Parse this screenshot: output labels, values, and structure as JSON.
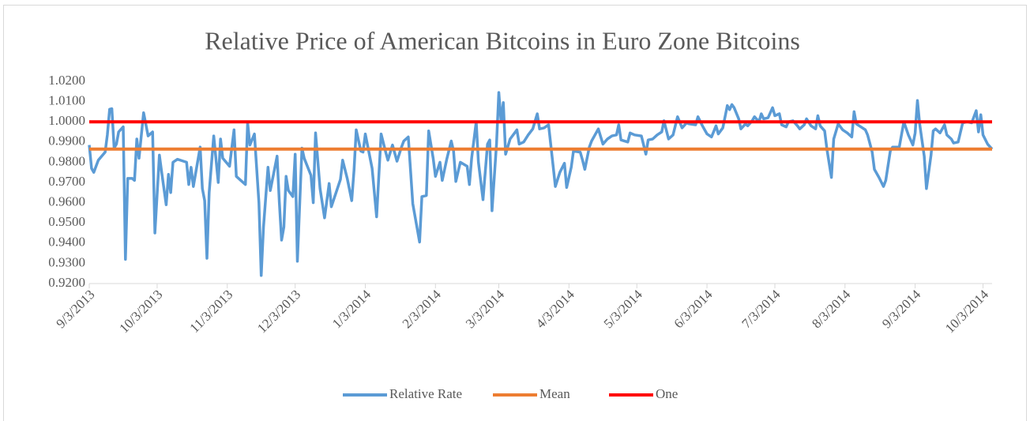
{
  "chart_data": {
    "type": "line",
    "title": "Relative Price of American Bitcoins in Euro Zone Bitcoins",
    "x": [
      "9/3/2013",
      "9/4/2013",
      "9/5/2013",
      "9/7/2013",
      "9/10/2013",
      "9/11/2013",
      "9/12/2013",
      "9/13/2013",
      "9/14/2013",
      "9/15/2013",
      "9/16/2013",
      "9/18/2013",
      "9/19/2013",
      "9/20/2013",
      "9/22/2013",
      "9/23/2013",
      "9/24/2013",
      "9/25/2013",
      "9/27/2013",
      "9/29/2013",
      "10/1/2013",
      "10/2/2013",
      "10/4/2013",
      "10/5/2013",
      "10/7/2013",
      "10/8/2013",
      "10/9/2013",
      "10/10/2013",
      "10/12/2013",
      "10/16/2013",
      "10/17/2013",
      "10/18/2013",
      "10/19/2013",
      "10/22/2013",
      "10/23/2013",
      "10/24/2013",
      "10/25/2013",
      "10/26/2013",
      "10/28/2013",
      "10/30/2013",
      "10/31/2013",
      "11/1/2013",
      "11/4/2013",
      "11/6/2013",
      "11/7/2013",
      "11/9/2013",
      "11/11/2013",
      "11/12/2013",
      "11/13/2013",
      "11/15/2013",
      "11/17/2013",
      "11/18/2013",
      "11/19/2013",
      "11/21/2013",
      "11/22/2013",
      "11/25/2013",
      "11/26/2013",
      "11/27/2013",
      "11/28/2013",
      "11/29/2013",
      "11/30/2013",
      "12/2/2013",
      "12/3/2013",
      "12/4/2013",
      "12/6/2013",
      "12/7/2013",
      "12/10/2013",
      "12/11/2013",
      "12/12/2013",
      "12/14/2013",
      "12/16/2013",
      "12/18/2013",
      "12/19/2013",
      "12/23/2013",
      "12/24/2013",
      "12/26/2013",
      "12/28/2013",
      "12/29/2013",
      "12/30/2013",
      "1/1/2014",
      "1/2/2014",
      "1/3/2014",
      "1/6/2014",
      "1/8/2014",
      "1/10/2014",
      "1/12/2014",
      "1/13/2014",
      "1/15/2014",
      "1/17/2014",
      "1/19/2014",
      "1/20/2014",
      "1/22/2014",
      "1/24/2014",
      "1/27/2014",
      "1/28/2014",
      "1/30/2014",
      "1/31/2014",
      "2/2/2014",
      "2/3/2014",
      "2/5/2014",
      "2/6/2014",
      "2/8/2014",
      "2/10/2014",
      "2/11/2014",
      "2/12/2014",
      "2/14/2014",
      "2/17/2014",
      "2/18/2014",
      "2/19/2014",
      "2/21/2014",
      "2/22/2014",
      "2/24/2014",
      "2/26/2014",
      "2/27/2014",
      "2/28/2014",
      "3/2/2014",
      "3/3/2014",
      "3/4/2014",
      "3/5/2014",
      "3/6/2014",
      "3/8/2014",
      "3/11/2014",
      "3/12/2014",
      "3/14/2014",
      "3/16/2014",
      "3/18/2014",
      "3/20/2014",
      "3/21/2014",
      "3/23/2014",
      "3/25/2014",
      "3/27/2014",
      "3/28/2014",
      "3/30/2014",
      "4/1/2014",
      "4/2/2014",
      "4/4/2014",
      "4/5/2014",
      "4/8/2014",
      "4/9/2014",
      "4/10/2014",
      "4/12/2014",
      "4/13/2014",
      "4/16/2014",
      "4/18/2014",
      "4/20/2014",
      "4/22/2014",
      "4/24/2014",
      "4/25/2014",
      "4/26/2014",
      "4/29/2014",
      "4/30/2014",
      "5/2/2014",
      "5/5/2014",
      "5/7/2014",
      "5/8/2014",
      "5/10/2014",
      "5/12/2014",
      "5/14/2014",
      "5/15/2014",
      "5/17/2014",
      "5/19/2014",
      "5/21/2014",
      "5/23/2014",
      "5/25/2014",
      "5/26/2014",
      "5/29/2014",
      "5/30/2014",
      "6/1/2014",
      "6/3/2014",
      "6/5/2014",
      "6/7/2014",
      "6/8/2014",
      "6/10/2014",
      "6/12/2014",
      "6/13/2014",
      "6/14/2014",
      "6/15/2014",
      "6/17/2014",
      "6/18/2014",
      "6/20/2014",
      "6/21/2014",
      "6/23/2014",
      "6/24/2014",
      "6/26/2014",
      "6/27/2014",
      "6/28/2014",
      "6/30/2014",
      "7/2/2014",
      "7/3/2014",
      "7/5/2014",
      "7/6/2014",
      "7/8/2014",
      "7/9/2014",
      "7/11/2014",
      "7/13/2014",
      "7/14/2014",
      "7/16/2014",
      "7/17/2014",
      "7/19/2014",
      "7/21/2014",
      "7/22/2014",
      "7/23/2014",
      "7/25/2014",
      "7/26/2014",
      "7/28/2014",
      "7/29/2014",
      "7/31/2014",
      "8/2/2014",
      "8/4/2014",
      "8/6/2014",
      "8/7/2014",
      "8/8/2014",
      "8/10/2014",
      "8/12/2014",
      "8/13/2014",
      "8/15/2014",
      "8/16/2014",
      "8/18/2014",
      "8/20/2014",
      "8/21/2014",
      "8/23/2014",
      "8/24/2014",
      "8/27/2014",
      "8/29/2014",
      "8/31/2014",
      "9/2/2014",
      "9/3/2014",
      "9/4/2014",
      "9/5/2014",
      "9/7/2014",
      "9/8/2014",
      "9/10/2014",
      "9/11/2014",
      "9/12/2014",
      "9/14/2014",
      "9/16/2014",
      "9/17/2014",
      "9/19/2014",
      "9/20/2014",
      "9/22/2014",
      "9/24/2014",
      "9/26/2014",
      "9/28/2014",
      "9/30/2014",
      "10/1/2014",
      "10/2/2014",
      "10/3/2014",
      "10/5/2014",
      "10/7/2014"
    ],
    "series": [
      {
        "name": "Relative Rate",
        "color": "#5b9bd5",
        "values": [
          0.9885,
          0.977,
          0.975,
          0.981,
          0.985,
          0.9935,
          1.0062,
          1.0065,
          0.987,
          0.989,
          0.995,
          0.9975,
          0.932,
          0.972,
          0.972,
          0.971,
          0.9915,
          0.982,
          1.0045,
          0.993,
          0.995,
          0.945,
          0.9835,
          0.975,
          0.959,
          0.974,
          0.965,
          0.98,
          0.9815,
          0.98,
          0.969,
          0.9775,
          0.968,
          0.9875,
          0.967,
          0.961,
          0.9325,
          0.965,
          0.993,
          0.97,
          0.9915,
          0.982,
          0.978,
          0.996,
          0.973,
          0.971,
          0.969,
          0.9995,
          0.9885,
          0.994,
          0.96,
          0.924,
          0.948,
          0.9775,
          0.966,
          0.983,
          0.9605,
          0.9415,
          0.948,
          0.973,
          0.966,
          0.963,
          0.984,
          0.931,
          0.987,
          0.982,
          0.9735,
          0.96,
          0.9945,
          0.967,
          0.9525,
          0.9695,
          0.958,
          0.9715,
          0.981,
          0.972,
          0.961,
          0.976,
          0.996,
          0.9855,
          0.985,
          0.994,
          0.977,
          0.953,
          0.994,
          0.985,
          0.981,
          0.9885,
          0.9805,
          0.9875,
          0.9905,
          0.9925,
          0.9595,
          0.9405,
          0.963,
          0.9635,
          0.9955,
          0.982,
          0.973,
          0.98,
          0.971,
          0.9815,
          0.9905,
          0.9855,
          0.9705,
          0.98,
          0.978,
          0.969,
          0.982,
          1,
          0.98,
          0.9615,
          0.989,
          0.991,
          0.956,
          0.989,
          1.0145,
          1,
          1.0095,
          0.984,
          0.9915,
          0.996,
          0.989,
          0.99,
          0.9935,
          0.9965,
          1.004,
          0.9965,
          0.997,
          0.9985,
          0.978,
          0.968,
          0.975,
          0.9795,
          0.9675,
          0.9775,
          0.9855,
          0.985,
          0.981,
          0.9765,
          0.9875,
          0.9905,
          0.9965,
          0.989,
          0.9915,
          0.993,
          0.9935,
          0.9985,
          0.991,
          0.99,
          0.9945,
          0.9935,
          0.993,
          0.984,
          0.991,
          0.9915,
          0.9935,
          0.995,
          1.0005,
          0.9915,
          0.9935,
          1.0025,
          0.997,
          0.9995,
          0.999,
          0.9985,
          1.0025,
          0.998,
          0.994,
          0.9925,
          0.998,
          0.994,
          0.997,
          1.008,
          1.006,
          1.0085,
          1.007,
          1.0015,
          0.9965,
          0.999,
          0.998,
          1.0005,
          1.0025,
          1,
          1.004,
          1.0015,
          1.002,
          1.007,
          1.003,
          1.004,
          0.9985,
          0.9975,
          1,
          1.0005,
          0.998,
          0.9965,
          0.9985,
          1.0015,
          0.998,
          0.9965,
          1.003,
          0.998,
          0.9955,
          0.9865,
          0.9725,
          0.9915,
          0.999,
          0.996,
          0.9945,
          0.9925,
          1.005,
          0.999,
          0.9975,
          0.996,
          0.9935,
          0.985,
          0.9765,
          0.9725,
          0.968,
          0.971,
          0.9855,
          0.9875,
          0.9875,
          1,
          0.9935,
          0.9885,
          0.9945,
          1.0105,
          0.999,
          0.983,
          0.967,
          0.9835,
          0.9955,
          0.9965,
          0.9945,
          0.9985,
          0.9935,
          0.9915,
          0.9895,
          0.99,
          0.9995,
          1,
          0.9995,
          1.0055,
          0.995,
          1.0035,
          0.9935,
          0.989,
          0.9865
        ]
      },
      {
        "name": "Mean",
        "color": "#ed7d31",
        "x": [
          "9/3/2013",
          "10/7/2014"
        ],
        "values": [
          0.9865,
          0.9865
        ]
      },
      {
        "name": "One",
        "color": "#ff0000",
        "x": [
          "9/3/2013",
          "10/7/2014"
        ],
        "values": [
          1,
          1
        ]
      }
    ],
    "xlim": [
      "9/3/2013",
      "10/7/2014"
    ],
    "xticks": [
      "9/3/2013",
      "10/3/2013",
      "11/3/2013",
      "12/3/2013",
      "1/3/2014",
      "2/3/2014",
      "3/3/2014",
      "4/3/2014",
      "5/3/2014",
      "6/3/2014",
      "7/3/2014",
      "8/3/2014",
      "9/3/2014",
      "10/3/2014"
    ],
    "ylim": [
      0.92,
      1.02
    ],
    "yticks": [
      {
        "value": 1.02,
        "label": "1.0200"
      },
      {
        "value": 1.01,
        "label": "1.0100"
      },
      {
        "value": 1,
        "label": "1.0000"
      },
      {
        "value": 0.99,
        "label": "0.9900"
      },
      {
        "value": 0.98,
        "label": "0.9800"
      },
      {
        "value": 0.97,
        "label": "0.9700"
      },
      {
        "value": 0.96,
        "label": "0.9600"
      },
      {
        "value": 0.95,
        "label": "0.9500"
      },
      {
        "value": 0.94,
        "label": "0.9400"
      },
      {
        "value": 0.93,
        "label": "0.9300"
      },
      {
        "value": 0.92,
        "label": "0.9200"
      }
    ],
    "grid": false,
    "legend": "bottom"
  }
}
